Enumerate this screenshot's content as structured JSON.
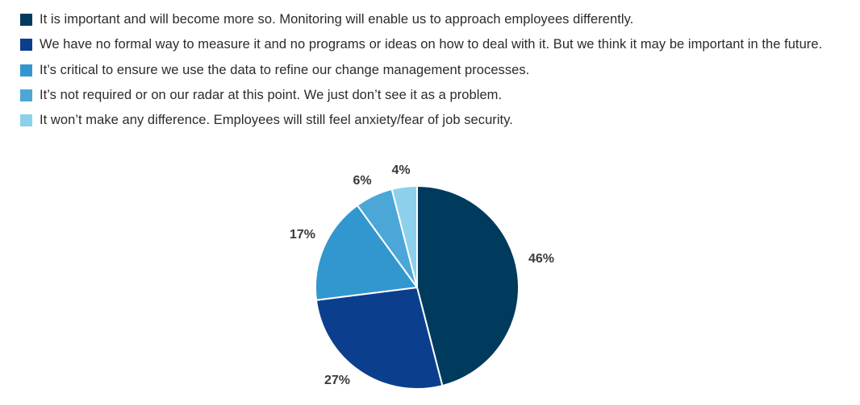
{
  "chart_data": {
    "type": "pie",
    "title": "",
    "series": [
      {
        "name": "It is important and will become more so. Monitoring will enable us to approach employees differently.",
        "value": 46,
        "label": "46%",
        "color": "#003a5d"
      },
      {
        "name": "We have no formal way to measure it and no programs or ideas on how to deal with it. But we think it may be important in the future.",
        "value": 27,
        "label": "27%",
        "color": "#0b3f8d"
      },
      {
        "name": "It’s critical to ensure we use the data to refine our change management processes.",
        "value": 17,
        "label": "17%",
        "color": "#3297ce"
      },
      {
        "name": "It’s not required or on our radar at this point. We just don’t see it as a problem.",
        "value": 6,
        "label": "6%",
        "color": "#4aa7d8"
      },
      {
        "name": "It won’t make any difference. Employees will still feel anxiety/fear of job security.",
        "value": 4,
        "label": "4%",
        "color": "#8dd0ec"
      }
    ],
    "legend_position": "top-left"
  }
}
